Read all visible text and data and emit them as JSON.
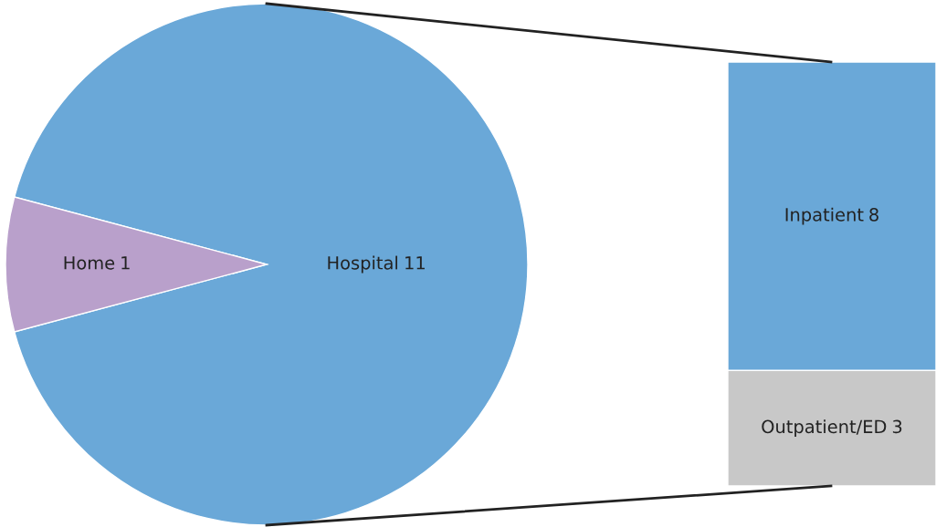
{
  "chart_data": [
    {
      "type": "pie",
      "categories": [
        "Hospital",
        "Home"
      ],
      "values": [
        11,
        1
      ],
      "colors": [
        "#6aa8d8",
        "#b9a0cb"
      ],
      "data_labels": true,
      "legend": false
    },
    {
      "type": "bar",
      "stacked": true,
      "categories": [
        null
      ],
      "data_labels": true,
      "legend": false,
      "series": [
        {
          "name": "Outpatient/ED",
          "color": "#c8c8c8",
          "values": [
            3
          ]
        },
        {
          "name": "Inpatient",
          "color": "#6aa8d8",
          "values": [
            8
          ]
        }
      ]
    }
  ]
}
